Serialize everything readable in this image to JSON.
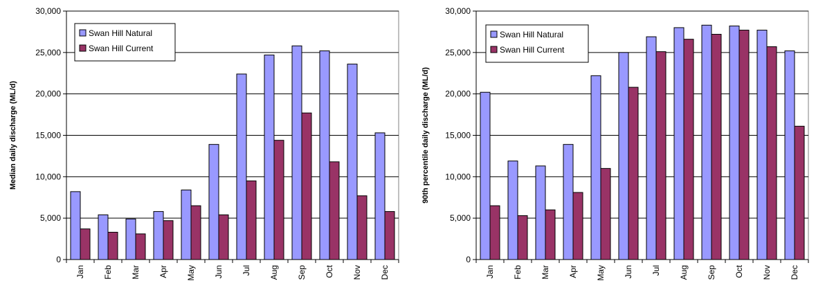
{
  "chart_data": [
    {
      "type": "bar",
      "ylabel": "Median daily discharge (ML/d)",
      "categories": [
        "Jan",
        "Feb",
        "Mar",
        "Apr",
        "May",
        "Jun",
        "Jul",
        "Aug",
        "Sep",
        "Oct",
        "Nov",
        "Dec"
      ],
      "ylim": [
        0,
        30000
      ],
      "yticks": [
        "0",
        "5,000",
        "10,000",
        "15,000",
        "20,000",
        "25,000",
        "30,000"
      ],
      "ytick_values": [
        0,
        5000,
        10000,
        15000,
        20000,
        25000,
        30000
      ],
      "grid": true,
      "legend_position": "top-left",
      "series": [
        {
          "name": "Swan Hill Natural",
          "color": "#9999ff",
          "values": [
            8200,
            5400,
            4900,
            5800,
            8400,
            13900,
            22400,
            24700,
            25800,
            25200,
            23600,
            15300
          ]
        },
        {
          "name": "Swan Hill Current",
          "color": "#993366",
          "values": [
            3700,
            3300,
            3100,
            4700,
            6500,
            5400,
            9500,
            14400,
            17700,
            11800,
            7700,
            5800
          ]
        }
      ]
    },
    {
      "type": "bar",
      "ylabel": "90th percentile daily discharge (ML/d)",
      "categories": [
        "Jan",
        "Feb",
        "Mar",
        "Apr",
        "May",
        "Jun",
        "Jul",
        "Aug",
        "Sep",
        "Oct",
        "Nov",
        "Dec"
      ],
      "ylim": [
        0,
        30000
      ],
      "yticks": [
        "0",
        "5,000",
        "10,000",
        "15,000",
        "20,000",
        "25,000",
        "30,000"
      ],
      "ytick_values": [
        0,
        5000,
        10000,
        15000,
        20000,
        25000,
        30000
      ],
      "grid": true,
      "legend_position": "top-left",
      "series": [
        {
          "name": "Swan Hill Natural",
          "color": "#9999ff",
          "values": [
            20200,
            11900,
            11300,
            13900,
            22200,
            25000,
            26900,
            28000,
            28300,
            28200,
            27700,
            25200
          ]
        },
        {
          "name": "Swan Hill Current",
          "color": "#993366",
          "values": [
            6500,
            5300,
            6000,
            8100,
            11000,
            20800,
            25100,
            26600,
            27200,
            27700,
            25700,
            16100
          ]
        }
      ]
    }
  ]
}
